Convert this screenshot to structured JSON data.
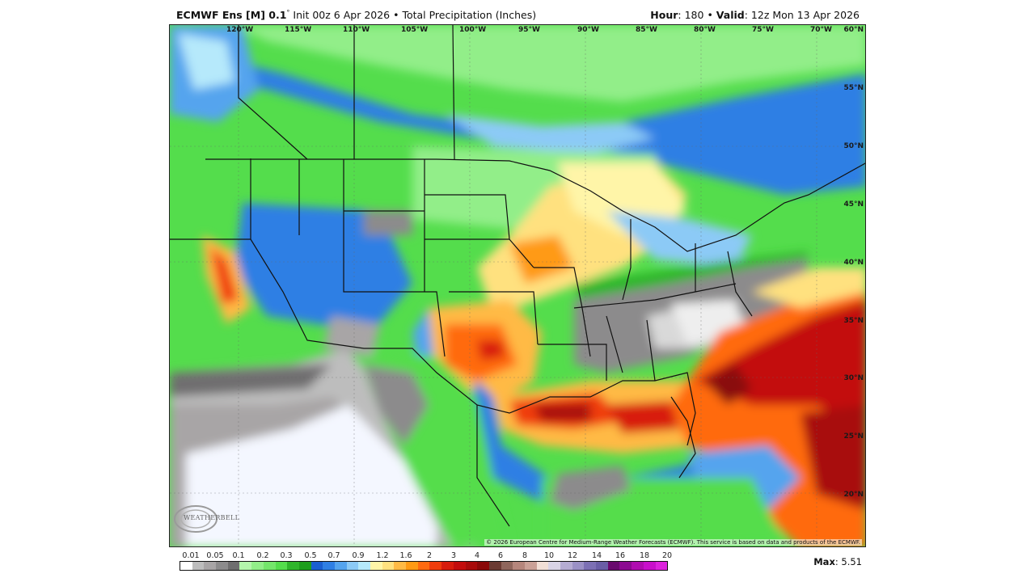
{
  "header": {
    "model_bold": "ECMWF Ens [M] 0.1",
    "degree": "°",
    "init_text": " Init 00z 6 Apr 2026 • Total Precipitation (Inches)",
    "hour_label": "Hour",
    "hour_value": ": 180 • ",
    "valid_label": "Valid",
    "valid_value": ": 12z Mon 13 Apr 2026"
  },
  "map": {
    "longitude_labels": [
      "120°W",
      "115°W",
      "110°W",
      "105°W",
      "100°W",
      "95°W",
      "90°W",
      "85°W",
      "80°W",
      "75°W",
      "70°W"
    ],
    "latitude_labels": [
      "60°N",
      "55°N",
      "50°N",
      "45°N",
      "40°N",
      "35°N",
      "30°N",
      "25°N",
      "20°N"
    ],
    "copyright": "© 2026 European Centre for Medium-Range Weather Forecasts (ECMWF). This service is based on data and products of the ECMWF.",
    "logo_text": "WEATHERBELL"
  },
  "colorbar": {
    "tick_labels": [
      "0.01",
      "0.05",
      "0.1",
      "0.2",
      "0.3",
      "0.5",
      "0.7",
      "0.9",
      "1.2",
      "1.6",
      "2",
      "3",
      "4",
      "6",
      "8",
      "10",
      "12",
      "14",
      "16",
      "18",
      "20"
    ],
    "colors": [
      "#ffffff",
      "#bdbdbd",
      "#a8a5a6",
      "#8c8b8c",
      "#6f6e6f",
      "#b4f5ac",
      "#92ee89",
      "#74e66b",
      "#54dd4c",
      "#2fb52b",
      "#1e9e1c",
      "#1a5fd0",
      "#2f7fe4",
      "#55a4ee",
      "#8ccaf6",
      "#b6e9fb",
      "#fff5a8",
      "#ffe17f",
      "#ffba45",
      "#ff9a14",
      "#ff6a10",
      "#f03c0c",
      "#d81c0c",
      "#c30c0c",
      "#a80a0a",
      "#8a0808",
      "#6b3b33",
      "#8f665c",
      "#b5867c",
      "#caa197",
      "#f1dfd6",
      "#d9d4e6",
      "#b5acd3",
      "#9b91c6",
      "#7c70b4",
      "#6a5ea6",
      "#6a0a6e",
      "#8c0a91",
      "#b00cb0",
      "#c90fcb",
      "#dd22dd"
    ],
    "max_label": "Max",
    "max_value": ": 5.51"
  },
  "chart_data": {
    "type": "heatmap",
    "title": "ECMWF Ens [M] 0.1° Init 00z 6 Apr 2026 • Total Precipitation (Inches)",
    "subtitle": "Hour: 180 • Valid: 12z Mon 13 Apr 2026",
    "units": "inches",
    "legend_levels": [
      0.01,
      0.05,
      0.1,
      0.2,
      0.3,
      0.5,
      0.7,
      0.9,
      1.2,
      1.6,
      2,
      3,
      4,
      6,
      8,
      10,
      12,
      14,
      16,
      18,
      20
    ],
    "max_value": 5.51,
    "lon_range": [
      "~124°W",
      "~68°W"
    ],
    "lat_range": [
      "~15°N",
      "~60°N"
    ],
    "highlights": [
      {
        "region": "Western Atlantic / off Florida & SE coast",
        "approx_in": "3-5.5"
      },
      {
        "region": "Gulf of Mexico (south of LA/TX coast)",
        "approx_in": "2-4"
      },
      {
        "region": "Central/North Texas & Oklahoma",
        "approx_in": "1.2-3"
      },
      {
        "region": "Iowa / Upper Midwest / Upper Peninsula MI",
        "approx_in": "1.2-2"
      },
      {
        "region": "Northern California Sierra",
        "approx_in": "1.2-2"
      },
      {
        "region": "Southeast US interior (GA, AL, SC)",
        "approx_in": "0.01-0.1"
      },
      {
        "region": "Baja California / eastern Pacific",
        "approx_in": "<0.01"
      }
    ]
  }
}
